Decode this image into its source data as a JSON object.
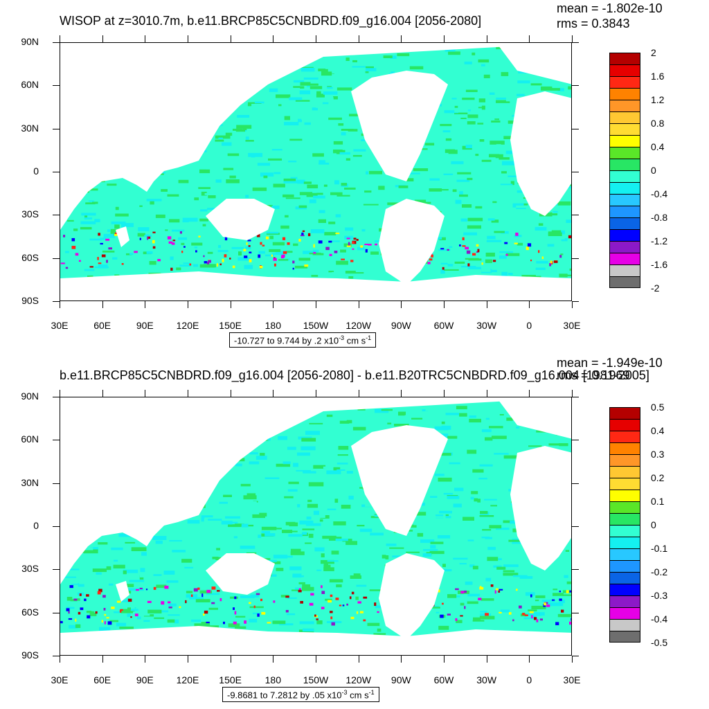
{
  "colors": {
    "palette": [
      "#6e6e6e",
      "#c8c8c8",
      "#e600e6",
      "#8c19c8",
      "#0000ff",
      "#0a64e6",
      "#1e96ff",
      "#28c8ff",
      "#14f0f0",
      "#32ffd2",
      "#28e664",
      "#5ae628",
      "#ffff00",
      "#ffdc32",
      "#ffc832",
      "#ff9628",
      "#ff8200",
      "#ff2814",
      "#e60000",
      "#b40000"
    ],
    "land": "#ffffff",
    "ocean_base": "#32ffd2",
    "ocean_alt": "#28e664",
    "ocean_cyan": "#14f0f0"
  },
  "axes": {
    "y_labels": [
      "90N",
      "60N",
      "30N",
      "0",
      "30S",
      "60S",
      "90S"
    ],
    "x_labels": [
      "30E",
      "60E",
      "90E",
      "120E",
      "150E",
      "180",
      "150W",
      "120W",
      "90W",
      "60W",
      "30W",
      "0",
      "30E"
    ]
  },
  "panels": [
    {
      "title": "WISOP at z=3010.7m, b.e11.BRCP85C5CNBDRD.f09_g16.004 [2056-2080]",
      "mean": "mean = -1.802e-10",
      "rms": "rms = 0.3843",
      "range_text": "-10.727 to 9.744 by .2 x10",
      "range_exp": "-3",
      "range_units": " cm s",
      "range_units_exp": "-1",
      "colorbar_labels": [
        "2",
        "1.6",
        "1.2",
        "0.8",
        "0.4",
        "0",
        "-0.4",
        "-0.8",
        "-1.2",
        "-1.6",
        "-2"
      ]
    },
    {
      "title": "b.e11.BRCP85C5CNBDRD.f09_g16.004 [2056-2080] - b.e11.B20TRC5CNBDRD.f09_g16.004 [1981-2005]",
      "mean": "mean = -1.949e-10",
      "rms": "rms = 0.1969",
      "range_text": "-9.8681 to 7.2812 by .05 x10",
      "range_exp": "-3",
      "range_units": " cm s",
      "range_units_exp": "-1",
      "colorbar_labels": [
        "0.5",
        "0.4",
        "0.3",
        "0.2",
        "0.1",
        "0",
        "-0.1",
        "-0.2",
        "-0.3",
        "-0.4",
        "-0.5"
      ]
    }
  ]
}
